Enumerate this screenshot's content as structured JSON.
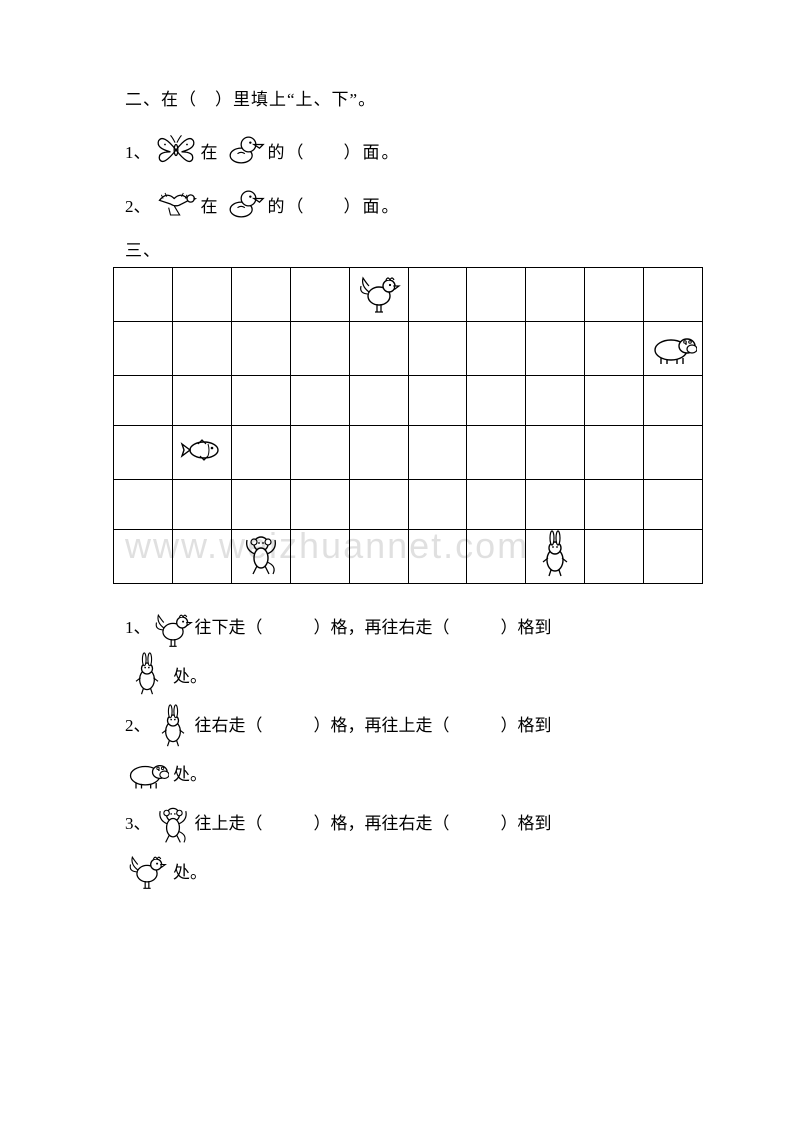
{
  "section2": {
    "heading": "二、在（ ）里填上“上、下”。",
    "q1": {
      "num": "1、",
      "mid": "在",
      "de": "的（  ）面。"
    },
    "q2": {
      "num": " 2、",
      "mid": "在",
      "de": "的（  ）面。"
    }
  },
  "section3": {
    "heading": "三、",
    "grid": {
      "cols": 10,
      "rows": 6,
      "placements": {
        "rooster": {
          "row": 0,
          "col": 4
        },
        "hippo": {
          "row": 1,
          "col": 9
        },
        "fish": {
          "row": 3,
          "col": 1
        },
        "monkey": {
          "row": 5,
          "col": 2
        },
        "rabbit": {
          "row": 5,
          "col": 7
        }
      }
    },
    "q1": {
      "num": "1、",
      "part1": "往下走（   ）格，再往右走（   ）格到",
      "dest_suffix": "处。"
    },
    "q2": {
      "num": "2、",
      "part1": "往右走（   ）格，再往上走（   ）格到",
      "dest_suffix": "处。"
    },
    "q3": {
      "num": "3、",
      "part1": "往上走（   ）格，再往右走（   ）格到",
      "dest_suffix": "处。"
    }
  },
  "watermark": "www.weizhuannet.com"
}
